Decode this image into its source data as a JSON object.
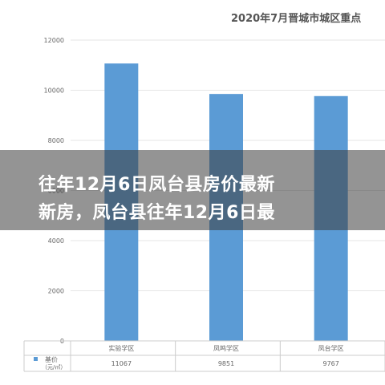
{
  "banner": {
    "line1": "往年12月6日凤台县房价最新",
    "line2": "新房，凤台县往年12月6日最"
  },
  "colors": {
    "bar": "#5b9bd5",
    "banner_overlay": "#3c3c3c",
    "grid": "#e6e6e6",
    "axis_text": "#666666"
  },
  "chart_data": {
    "type": "bar",
    "title": "2020年7月晋城市城区重点",
    "categories": [
      "实验学区",
      "凤鸣学区",
      "凤台学区"
    ],
    "series": [
      {
        "name": "基价",
        "unit": "（元/㎡）",
        "values": [
          11067,
          9851,
          9767
        ]
      }
    ],
    "yticks": [
      0,
      2000,
      4000,
      6000,
      8000,
      10000,
      12000
    ],
    "ylim": [
      0,
      12000
    ],
    "grid": true,
    "table_below": true
  }
}
